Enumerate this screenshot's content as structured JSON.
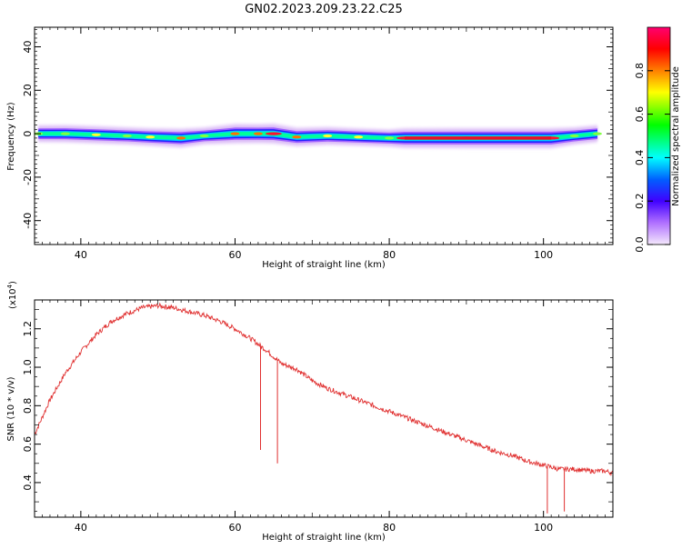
{
  "title": "GN02.2023.209.23.22.C25",
  "chart_data": [
    {
      "type": "heatmap",
      "xlabel": "Height of straight line (km)",
      "ylabel": "Frequency (Hz)",
      "xlim": [
        34,
        109
      ],
      "ylim": [
        -51,
        49
      ],
      "xticks": [
        40,
        60,
        80,
        100
      ],
      "yticks": [
        40,
        20,
        0,
        -20,
        -40
      ],
      "colorbar": {
        "label": "Normalized spectral amplitude",
        "range": [
          0,
          1
        ],
        "ticks": [
          0.0,
          0.2,
          0.4,
          0.6,
          0.8
        ],
        "tick_labels": [
          "0.0",
          "0.2",
          "0.4",
          "0.6",
          "0.8"
        ],
        "colors": [
          "#f4e8fc",
          "#8020ff",
          "#0000ff",
          "#00ffff",
          "#00ff00",
          "#ffff00",
          "#ff8000",
          "#ff0000",
          "#ff0060"
        ]
      },
      "band": [
        {
          "x": 34.5,
          "y": 0.0,
          "amp": 0.55
        },
        {
          "x": 38,
          "y": 0.0,
          "amp": 0.6
        },
        {
          "x": 42,
          "y": -0.5,
          "amp": 0.62
        },
        {
          "x": 46,
          "y": -1.0,
          "amp": 0.6
        },
        {
          "x": 49,
          "y": -1.5,
          "amp": 0.65
        },
        {
          "x": 53,
          "y": -2.0,
          "amp": 0.8
        },
        {
          "x": 56,
          "y": -1.0,
          "amp": 0.55
        },
        {
          "x": 60,
          "y": 0.0,
          "amp": 0.85
        },
        {
          "x": 63,
          "y": 0.0,
          "amp": 0.8
        },
        {
          "x": 65,
          "y": 0.0,
          "amp": 0.9
        },
        {
          "x": 68,
          "y": -1.5,
          "amp": 0.75
        },
        {
          "x": 72,
          "y": -1.0,
          "amp": 0.65
        },
        {
          "x": 76,
          "y": -1.5,
          "amp": 0.62
        },
        {
          "x": 80,
          "y": -2.0,
          "amp": 0.6
        },
        {
          "x": 82,
          "y": -2.0,
          "amp": 0.9
        },
        {
          "x": 90,
          "y": -2.0,
          "amp": 0.95
        },
        {
          "x": 96,
          "y": -2.0,
          "amp": 0.95
        },
        {
          "x": 101,
          "y": -2.0,
          "amp": 0.95
        },
        {
          "x": 104,
          "y": -1.0,
          "amp": 0.6
        },
        {
          "x": 107,
          "y": 0.0,
          "amp": 0.55
        }
      ]
    },
    {
      "type": "line",
      "xlabel": "Height of straight line (km)",
      "ylabel": "SNR (10 * v/v)",
      "yscale_label": "(x10",
      "yscale_exp": "4",
      "yscale_close": ")",
      "xlim": [
        34,
        109
      ],
      "ylim": [
        0.22,
        1.35
      ],
      "xticks": [
        40,
        60,
        80,
        100
      ],
      "yticks": [
        0.4,
        0.6,
        0.8,
        1.0,
        1.2
      ],
      "ytick_labels": [
        "0.4",
        "0.6",
        "0.8",
        "1.0",
        "1.2"
      ],
      "color": "#e03030",
      "x": [
        34,
        36,
        38,
        40,
        42,
        44,
        46,
        48,
        50,
        52,
        54,
        56,
        58,
        60,
        62,
        64,
        66,
        68,
        70,
        72,
        74,
        76,
        78,
        80,
        82,
        84,
        86,
        88,
        90,
        92,
        94,
        96,
        98,
        100,
        102,
        104,
        106,
        108,
        109
      ],
      "y": [
        0.65,
        0.83,
        0.97,
        1.08,
        1.17,
        1.24,
        1.28,
        1.31,
        1.32,
        1.31,
        1.29,
        1.27,
        1.24,
        1.2,
        1.15,
        1.09,
        1.02,
        0.99,
        0.93,
        0.89,
        0.86,
        0.83,
        0.8,
        0.77,
        0.74,
        0.71,
        0.68,
        0.65,
        0.62,
        0.59,
        0.56,
        0.54,
        0.51,
        0.49,
        0.47,
        0.47,
        0.46,
        0.46,
        0.45
      ],
      "spikes": [
        {
          "x": 63.3,
          "y": 0.57
        },
        {
          "x": 65.5,
          "y": 0.5
        },
        {
          "x": 100.5,
          "y": 0.24
        },
        {
          "x": 102.7,
          "y": 0.25
        }
      ]
    }
  ]
}
